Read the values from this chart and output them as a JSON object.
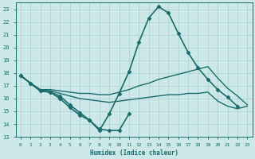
{
  "bg_color": "#cce8e8",
  "grid_color": "#aacfcf",
  "line_color": "#1a6b6b",
  "xlabel": "Humidex (Indice chaleur)",
  "xlim": [
    -0.5,
    23.5
  ],
  "ylim": [
    13,
    23.5
  ],
  "yticks": [
    13,
    14,
    15,
    16,
    17,
    18,
    19,
    20,
    21,
    22,
    23
  ],
  "xticks": [
    0,
    1,
    2,
    3,
    4,
    5,
    6,
    7,
    8,
    9,
    10,
    11,
    12,
    13,
    14,
    15,
    16,
    17,
    18,
    19,
    20,
    21,
    22,
    23
  ],
  "series": [
    {
      "x": [
        0,
        1,
        2,
        3,
        4,
        5,
        6,
        7,
        8,
        9,
        10,
        11,
        12,
        13,
        14,
        15,
        16,
        17,
        18,
        19,
        20,
        21,
        22,
        23
      ],
      "y": [
        17.8,
        17.2,
        16.6,
        16.5,
        16.0,
        15.3,
        14.7,
        14.3,
        13.5,
        14.8,
        16.4,
        18.1,
        20.4,
        22.3,
        23.2,
        22.7,
        21.1,
        19.6,
        18.4,
        17.5,
        16.7,
        16.1,
        15.4,
        null
      ],
      "marker": "D",
      "markersize": 2.5,
      "linewidth": 1.2,
      "dashed": false
    },
    {
      "x": [
        0,
        1,
        2,
        3,
        4,
        5,
        6,
        7,
        8,
        9,
        10,
        11,
        12,
        13,
        14,
        15,
        16,
        17,
        18,
        19,
        20,
        21,
        22,
        23
      ],
      "y": [
        17.8,
        17.2,
        16.6,
        16.5,
        16.2,
        15.5,
        14.9,
        14.3,
        13.6,
        13.5,
        13.5,
        14.8,
        null,
        null,
        null,
        null,
        null,
        null,
        null,
        null,
        null,
        null,
        null,
        null
      ],
      "marker": "D",
      "markersize": 2.5,
      "linewidth": 1.2,
      "dashed": false
    },
    {
      "x": [
        0,
        1,
        2,
        3,
        4,
        5,
        6,
        7,
        8,
        9,
        10,
        11,
        12,
        13,
        14,
        15,
        16,
        17,
        18,
        19,
        20,
        21,
        22,
        23
      ],
      "y": [
        17.8,
        17.2,
        16.7,
        16.7,
        16.6,
        16.5,
        16.4,
        16.4,
        16.3,
        16.3,
        16.5,
        16.7,
        17.0,
        17.2,
        17.5,
        17.7,
        17.9,
        18.1,
        18.3,
        18.5,
        17.6,
        16.8,
        16.2,
        15.5
      ],
      "marker": null,
      "markersize": 0,
      "linewidth": 1.0,
      "dashed": false
    },
    {
      "x": [
        0,
        1,
        2,
        3,
        4,
        5,
        6,
        7,
        8,
        9,
        10,
        11,
        12,
        13,
        14,
        15,
        16,
        17,
        18,
        19,
        20,
        21,
        22,
        23
      ],
      "y": [
        17.8,
        17.2,
        16.7,
        16.6,
        16.4,
        16.2,
        16.0,
        15.9,
        15.8,
        15.7,
        15.8,
        15.9,
        16.0,
        16.1,
        16.2,
        16.3,
        16.3,
        16.4,
        16.4,
        16.5,
        15.8,
        15.4,
        15.2,
        15.4
      ],
      "marker": null,
      "markersize": 0,
      "linewidth": 1.0,
      "dashed": false
    }
  ]
}
